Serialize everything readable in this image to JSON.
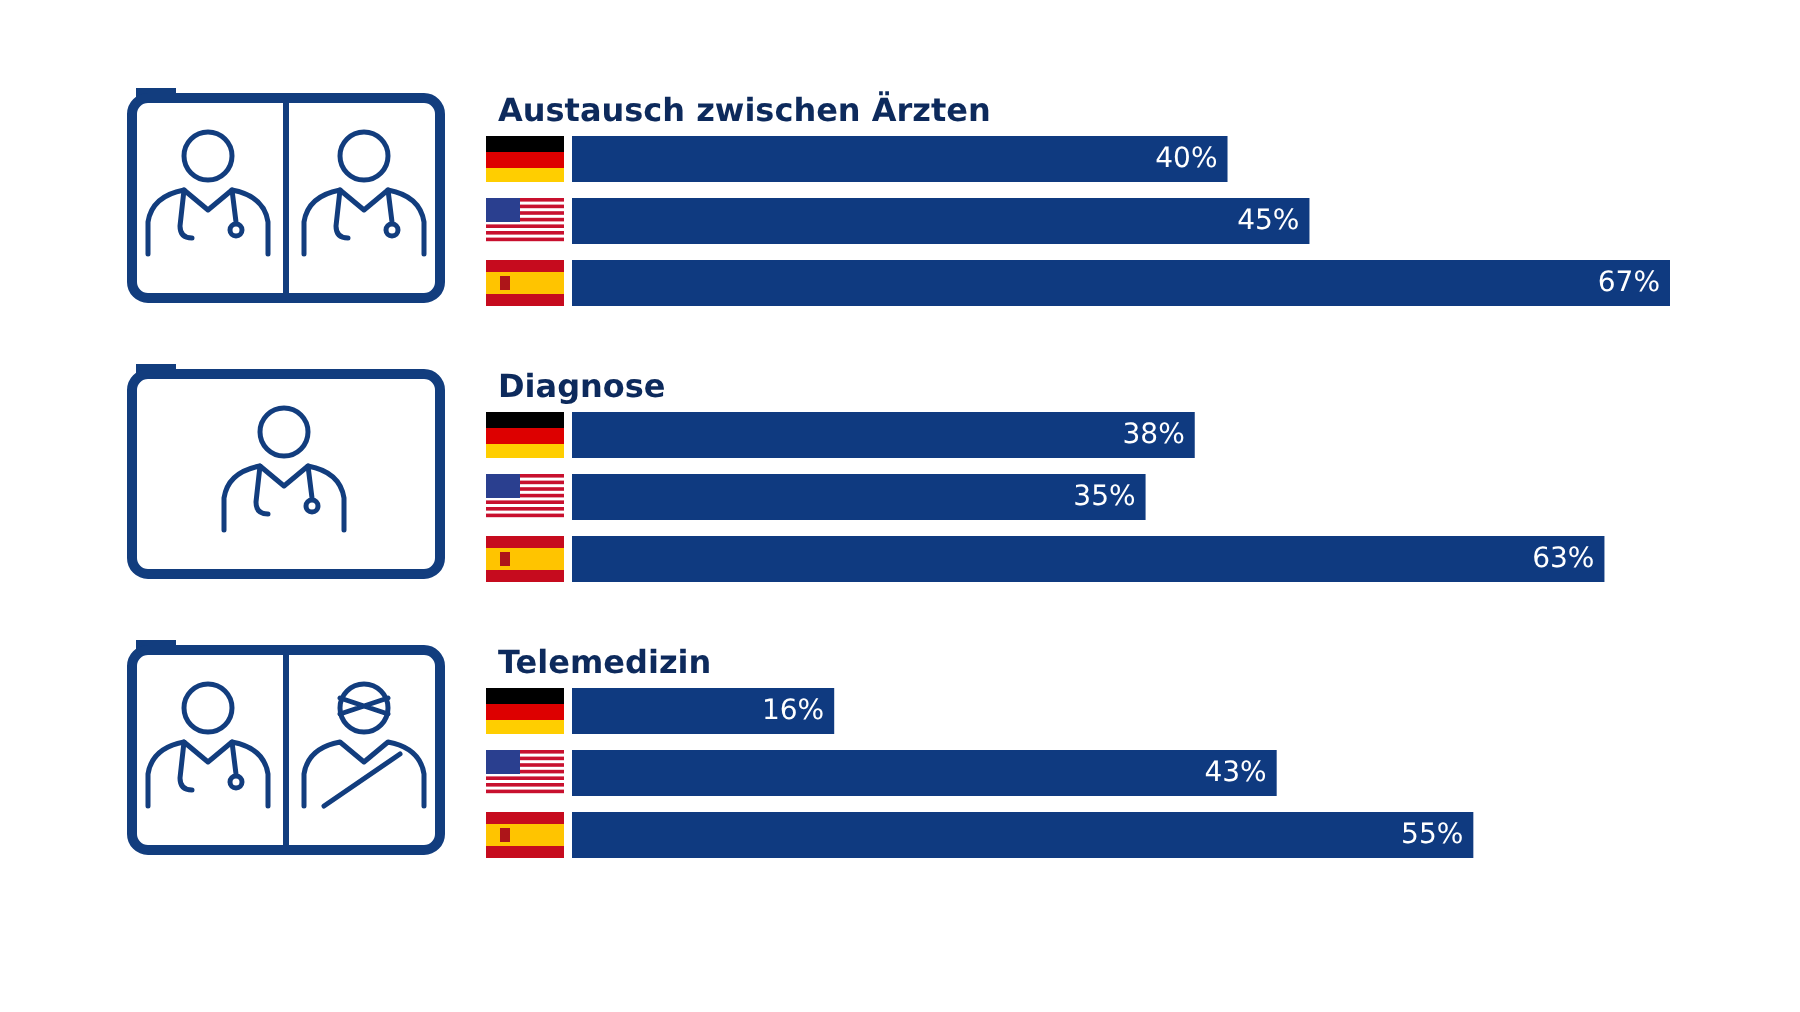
{
  "chart_data": [
    {
      "type": "bar",
      "orientation": "horizontal",
      "title": "Austausch zwischen Ärzten",
      "categories": [
        null,
        null,
        null
      ],
      "values": [
        40,
        45,
        67
      ],
      "value_labels": [
        "40%",
        "45%",
        "67%"
      ],
      "color": "#0f3a80"
    },
    {
      "type": "bar",
      "orientation": "horizontal",
      "title": "Diagnose",
      "categories": [
        null,
        null,
        null
      ],
      "values": [
        38,
        35,
        63
      ],
      "value_labels": [
        "38%",
        "35%",
        "63%"
      ],
      "color": "#0f3a80"
    },
    {
      "type": "bar",
      "orientation": "horizontal",
      "title": "Telemedizin",
      "categories": [
        null,
        null,
        null
      ],
      "values": [
        16,
        43,
        55
      ],
      "value_labels": [
        "16%",
        "43%",
        "55%"
      ],
      "color": "#0f3a80"
    }
  ]
}
